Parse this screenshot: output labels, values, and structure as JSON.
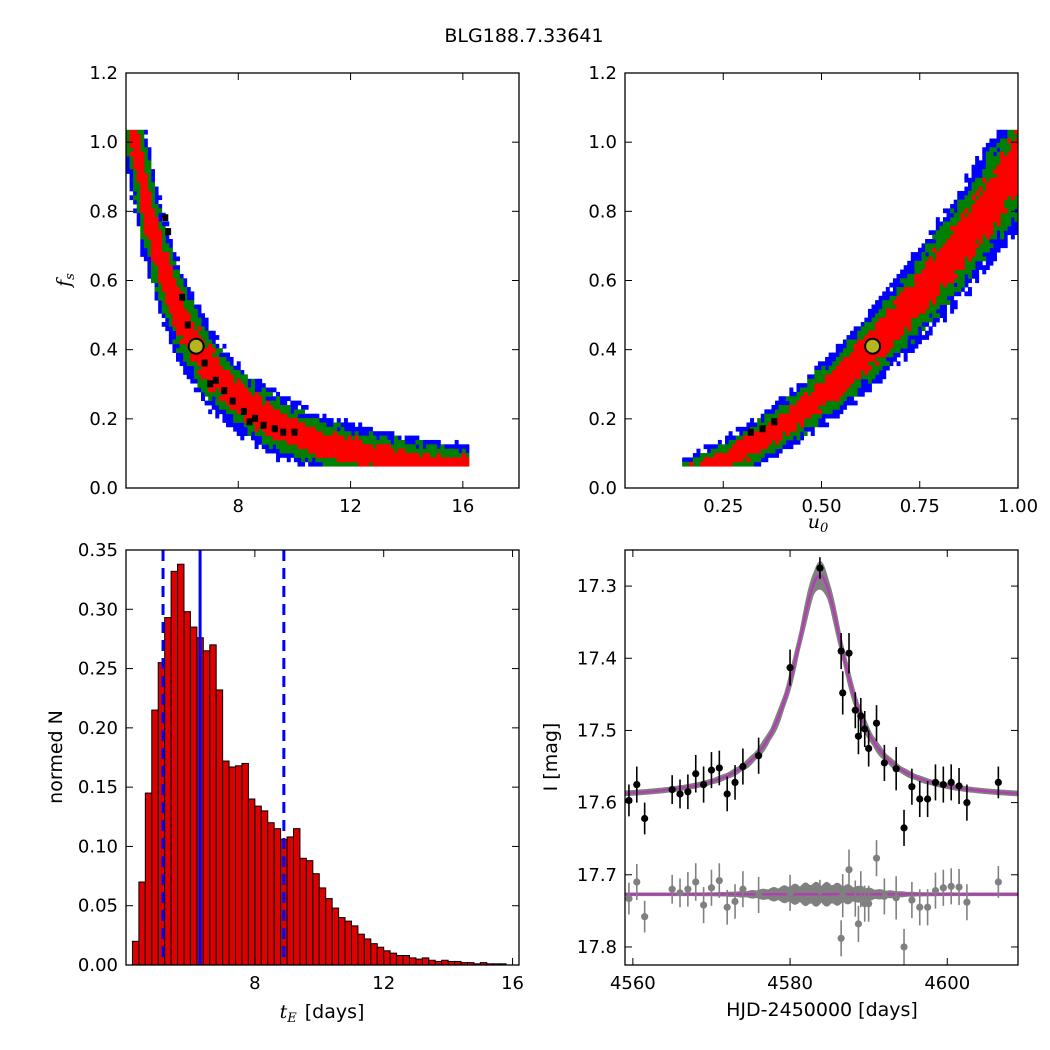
{
  "figure": {
    "title": "BLG188.7.33641"
  },
  "colors": {
    "blue": "#0000ff",
    "green": "#008000",
    "red": "#ff0000",
    "black": "#000000",
    "marker": "#b5b520",
    "bar_fill": "#dd0000",
    "model": "#b040b0",
    "band": "#808080",
    "resid": "#808080"
  },
  "chart_data": [
    {
      "name": "tE vs fs",
      "type": "heatmap",
      "xlabel": "",
      "ylabel": "f_s",
      "xlim": [
        4.0,
        18.0
      ],
      "ylim": [
        0.0,
        1.2
      ],
      "xticks": [
        8,
        12,
        16
      ],
      "yticks": [
        "0.0",
        "0.2",
        "0.4",
        "0.6",
        "0.8",
        "1.0",
        "1.2"
      ],
      "contour_levels": [
        "blue",
        "green",
        "red",
        "black"
      ],
      "best_fit": {
        "x": 6.5,
        "y": 0.41
      }
    },
    {
      "name": "u0 vs fs",
      "type": "heatmap",
      "xlabel": "u_0",
      "ylabel": "",
      "xlim": [
        0.0,
        1.0
      ],
      "ylim": [
        0.0,
        1.2
      ],
      "xticks": [
        "0.25",
        "0.50",
        "0.75",
        "1.00"
      ],
      "yticks": [
        "0.0",
        "0.2",
        "0.4",
        "0.6",
        "0.8",
        "1.0",
        "1.2"
      ],
      "contour_levels": [
        "blue",
        "green",
        "red",
        "black"
      ],
      "best_fit": {
        "x": 0.63,
        "y": 0.41
      }
    },
    {
      "name": "tE histogram",
      "type": "bar",
      "xlabel_math": "t_E",
      "xlabel_unit": "[days]",
      "ylabel": "normed N",
      "xlim": [
        4.0,
        16.2
      ],
      "ylim": [
        0.0,
        0.35
      ],
      "xticks": [
        8,
        12,
        16
      ],
      "yticks": [
        "0.00",
        "0.05",
        "0.10",
        "0.15",
        "0.20",
        "0.25",
        "0.30",
        "0.35"
      ],
      "bin_start": 4.2,
      "bin_width": 0.2,
      "values": [
        0.02,
        0.07,
        0.145,
        0.215,
        0.255,
        0.293,
        0.332,
        0.338,
        0.298,
        0.285,
        0.276,
        0.265,
        0.27,
        0.232,
        0.172,
        0.167,
        0.168,
        0.17,
        0.14,
        0.134,
        0.13,
        0.12,
        0.115,
        0.106,
        0.108,
        0.115,
        0.09,
        0.088,
        0.077,
        0.065,
        0.056,
        0.048,
        0.04,
        0.037,
        0.033,
        0.026,
        0.022,
        0.018,
        0.015,
        0.012,
        0.01,
        0.008,
        0.008,
        0.006,
        0.005,
        0.006,
        0.004,
        0.003,
        0.004,
        0.003,
        0.003,
        0.002,
        0.002,
        0.001,
        0.002,
        0.001,
        0.001,
        0.001
      ],
      "median": 6.3,
      "interval": [
        5.15,
        8.9
      ]
    },
    {
      "name": "light curve",
      "type": "scatter",
      "xlabel": "HJD-2450000 [days]",
      "ylabel": "I [mag]",
      "xlim": [
        4559.0,
        4609.0
      ],
      "ylim": [
        17.825,
        17.25
      ],
      "xticks": [
        4560,
        4580,
        4600
      ],
      "yticks": [
        "17.3",
        "17.4",
        "17.5",
        "17.6",
        "17.7",
        "17.8"
      ],
      "model": {
        "t0": 4583.8,
        "baseline": 17.595,
        "peak": 17.285,
        "width": 3.8
      },
      "residual_baseline": 17.727,
      "points": [
        [
          4559.5,
          17.597,
          0.022
        ],
        [
          4560.5,
          17.575,
          0.025
        ],
        [
          4561.5,
          17.622,
          0.022
        ],
        [
          4565.0,
          17.582,
          0.02
        ],
        [
          4566.0,
          17.588,
          0.02
        ],
        [
          4567.0,
          17.585,
          0.024
        ],
        [
          4568.0,
          17.56,
          0.026
        ],
        [
          4569.0,
          17.575,
          0.025
        ],
        [
          4570.0,
          17.555,
          0.025
        ],
        [
          4571.0,
          17.552,
          0.024
        ],
        [
          4572.0,
          17.588,
          0.024
        ],
        [
          4573.0,
          17.572,
          0.024
        ],
        [
          4574.0,
          17.55,
          0.025
        ],
        [
          4576.0,
          17.535,
          0.025
        ],
        [
          4580.0,
          17.413,
          0.025
        ],
        [
          4583.8,
          17.275,
          0.015
        ],
        [
          4586.5,
          17.39,
          0.025
        ],
        [
          4586.7,
          17.448,
          0.03
        ],
        [
          4587.5,
          17.393,
          0.028
        ],
        [
          4588.3,
          17.472,
          0.025
        ],
        [
          4588.7,
          17.508,
          0.025
        ],
        [
          4589.0,
          17.48,
          0.025
        ],
        [
          4589.5,
          17.498,
          0.025
        ],
        [
          4590.0,
          17.525,
          0.025
        ],
        [
          4591.0,
          17.49,
          0.025
        ],
        [
          4592.0,
          17.545,
          0.025
        ],
        [
          4593.5,
          17.553,
          0.03
        ],
        [
          4594.5,
          17.635,
          0.025
        ],
        [
          4595.5,
          17.578,
          0.025
        ],
        [
          4596.5,
          17.595,
          0.025
        ],
        [
          4597.5,
          17.595,
          0.025
        ],
        [
          4598.5,
          17.572,
          0.025
        ],
        [
          4599.5,
          17.575,
          0.025
        ],
        [
          4600.5,
          17.572,
          0.025
        ],
        [
          4601.5,
          17.577,
          0.025
        ],
        [
          4602.5,
          17.6,
          0.025
        ],
        [
          4606.5,
          17.572,
          0.022
        ]
      ],
      "residuals": [
        [
          4559.5,
          17.733,
          0.022
        ],
        [
          4560.5,
          17.71,
          0.025
        ],
        [
          4561.5,
          17.758,
          0.022
        ],
        [
          4565.0,
          17.72,
          0.02
        ],
        [
          4566.0,
          17.725,
          0.02
        ],
        [
          4567.0,
          17.72,
          0.024
        ],
        [
          4568.0,
          17.71,
          0.026
        ],
        [
          4569.0,
          17.742,
          0.025
        ],
        [
          4570.0,
          17.718,
          0.025
        ],
        [
          4571.0,
          17.708,
          0.024
        ],
        [
          4572.0,
          17.745,
          0.024
        ],
        [
          4573.0,
          17.737,
          0.024
        ],
        [
          4574.0,
          17.72,
          0.025
        ],
        [
          4576.0,
          17.728,
          0.025
        ],
        [
          4580.0,
          17.725,
          0.025
        ],
        [
          4583.8,
          17.722,
          0.015
        ],
        [
          4586.5,
          17.788,
          0.025
        ],
        [
          4586.7,
          17.729,
          0.03
        ],
        [
          4587.5,
          17.693,
          0.028
        ],
        [
          4588.3,
          17.733,
          0.025
        ],
        [
          4588.7,
          17.768,
          0.025
        ],
        [
          4589.0,
          17.72,
          0.025
        ],
        [
          4589.5,
          17.74,
          0.025
        ],
        [
          4590.0,
          17.74,
          0.025
        ],
        [
          4591.0,
          17.677,
          0.025
        ],
        [
          4592.0,
          17.73,
          0.025
        ],
        [
          4593.5,
          17.732,
          0.03
        ],
        [
          4594.5,
          17.8,
          0.025
        ],
        [
          4595.5,
          17.735,
          0.025
        ],
        [
          4596.5,
          17.745,
          0.025
        ],
        [
          4597.5,
          17.745,
          0.025
        ],
        [
          4598.5,
          17.722,
          0.025
        ],
        [
          4599.5,
          17.718,
          0.025
        ],
        [
          4600.5,
          17.716,
          0.025
        ],
        [
          4601.5,
          17.717,
          0.025
        ],
        [
          4602.5,
          17.738,
          0.025
        ],
        [
          4606.5,
          17.71,
          0.022
        ]
      ]
    }
  ]
}
